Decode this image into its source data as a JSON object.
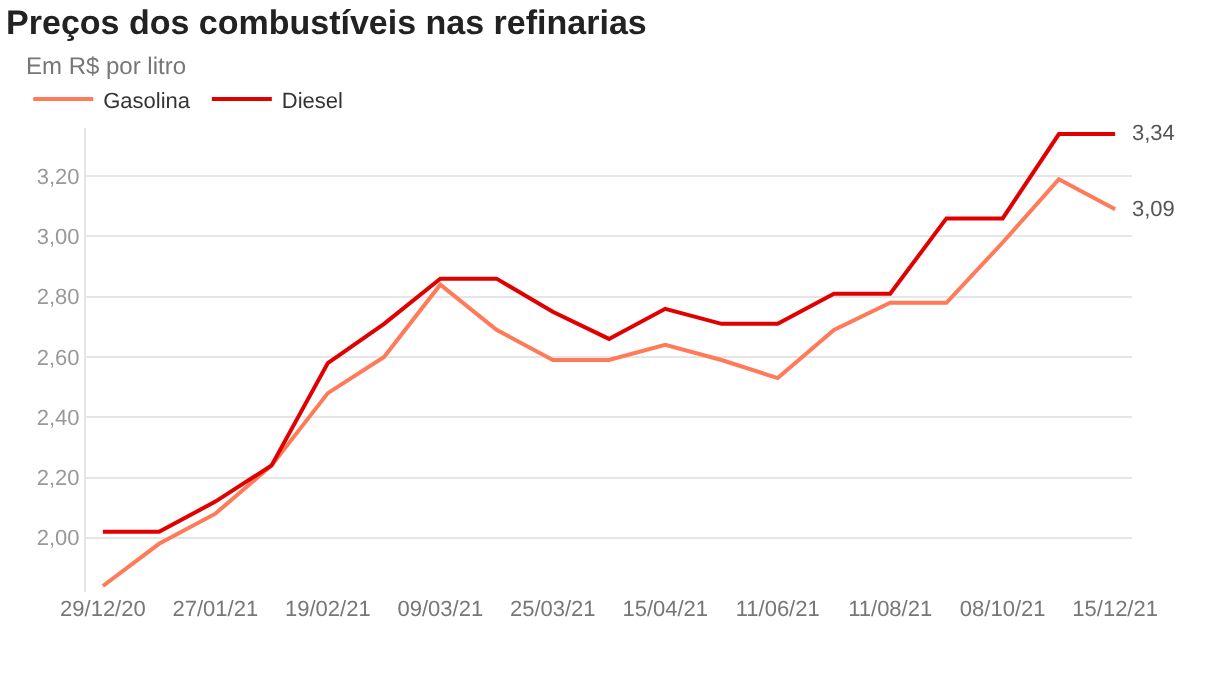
{
  "chart_data": {
    "type": "line",
    "title": "Preços dos combustíveis nas refinarias",
    "subtitle": "Em R$ por litro",
    "categories": [
      "29/12/20",
      null,
      "27/01/21",
      null,
      "19/02/21",
      null,
      "09/03/21",
      null,
      "25/03/21",
      null,
      "15/04/21",
      null,
      "11/06/21",
      null,
      "11/08/21",
      null,
      "08/10/21",
      null,
      "15/12/21"
    ],
    "series": [
      {
        "name": "Gasolina",
        "color": "#ff7a59",
        "values": [
          1.84,
          1.98,
          2.08,
          2.24,
          2.48,
          2.6,
          2.84,
          2.69,
          2.59,
          2.59,
          2.64,
          2.59,
          2.53,
          2.69,
          2.78,
          2.78,
          2.98,
          3.19,
          3.09
        ],
        "value_labels": [
          null,
          null,
          null,
          null,
          null,
          null,
          null,
          null,
          null,
          null,
          null,
          null,
          null,
          null,
          null,
          null,
          null,
          null,
          "3,09"
        ]
      },
      {
        "name": "Diesel",
        "color": "#e00000",
        "values": [
          2.02,
          2.02,
          2.12,
          2.24,
          2.58,
          2.71,
          2.86,
          2.86,
          2.75,
          2.66,
          2.76,
          2.71,
          2.71,
          2.81,
          2.81,
          3.06,
          3.06,
          3.34,
          3.34
        ],
        "value_labels": [
          null,
          null,
          null,
          null,
          null,
          null,
          null,
          null,
          null,
          null,
          null,
          null,
          null,
          null,
          null,
          null,
          null,
          null,
          "3,34"
        ]
      }
    ],
    "ylim": [
      1.82,
      3.36
    ],
    "yticks": [
      {
        "value": 2,
        "label": "2,00"
      },
      {
        "value": 2.2,
        "label": "2,20"
      },
      {
        "value": 2.4,
        "label": "2,40"
      },
      {
        "value": 2.6,
        "label": "2,60"
      },
      {
        "value": 2.8,
        "label": "2,80"
      },
      {
        "value": 3,
        "label": "3,00"
      },
      {
        "value": 3.2,
        "label": "3,20"
      }
    ],
    "grid": "y",
    "legend": "top left",
    "marker": "none",
    "line_style": "solid"
  }
}
